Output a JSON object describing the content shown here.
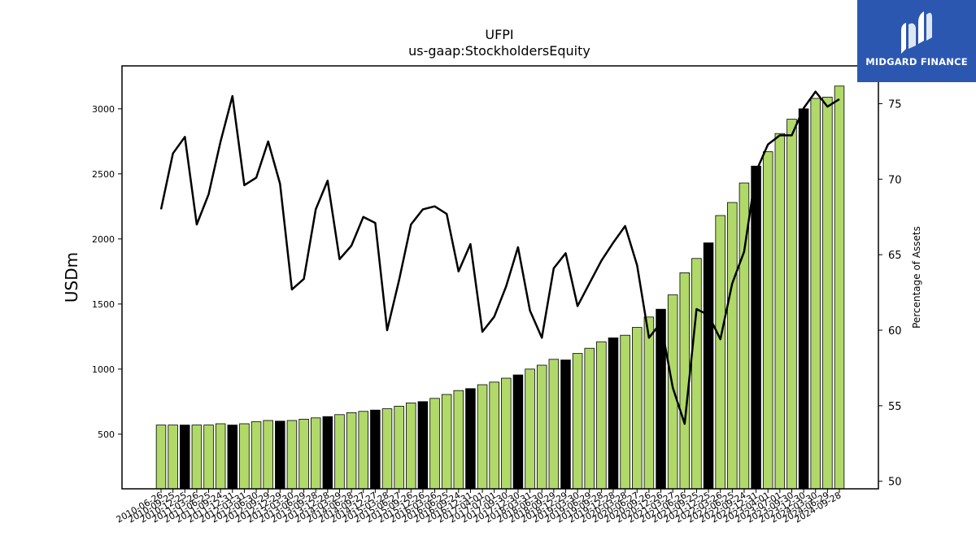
{
  "brand": {
    "name": "MIDGARD FINANCE",
    "bg_color": "#2c57b0"
  },
  "chart_data": {
    "type": "bar",
    "title": "UFPI",
    "subtitle": "us-gaap:StockholdersEquity",
    "ylabel": "USDm",
    "y2label": "Percentage of Assets",
    "ylim": [
      80,
      3330
    ],
    "y2lim": [
      49.5,
      77.5
    ],
    "yticks": [
      500,
      1000,
      1500,
      2000,
      2500,
      3000
    ],
    "y2ticks": [
      50,
      55,
      60,
      65,
      70,
      75
    ],
    "colors": {
      "bar": "#b0d96a",
      "bar_q4": "#000000",
      "line": "#000000"
    },
    "categories": [
      "2010-06-26",
      "2010-09-25",
      "2010-12-25",
      "2011-03-26",
      "2011-06-25",
      "2011-09-24",
      "2011-12-31",
      "2012-03-31",
      "2012-06-30",
      "2012-09-29",
      "2012-12-29",
      "2013-03-30",
      "2013-06-29",
      "2013-09-28",
      "2013-12-28",
      "2014-03-29",
      "2014-06-28",
      "2014-09-27",
      "2014-12-27",
      "2015-03-28",
      "2015-06-27",
      "2015-09-26",
      "2015-12-26",
      "2016-03-26",
      "2016-06-25",
      "2016-09-24",
      "2016-12-31",
      "2017-04-01",
      "2017-07-01",
      "2017-09-30",
      "2017-12-30",
      "2018-03-31",
      "2018-06-30",
      "2018-09-29",
      "2018-12-29",
      "2019-03-30",
      "2019-06-29",
      "2019-09-28",
      "2019-12-28",
      "2020-03-28",
      "2020-06-27",
      "2020-09-26",
      "2020-12-26",
      "2021-03-27",
      "2021-06-26",
      "2021-09-25",
      "2021-12-25",
      "2022-03-26",
      "2022-06-25",
      "2022-09-24",
      "2022-12-31",
      "2023-04-01",
      "2023-07-01",
      "2023-09-30",
      "2023-12-30",
      "2024-03-30",
      "2024-06-29",
      "2024-09-28"
    ],
    "x_tick_labels": [
      "2010-06-26",
      "2010-09-25",
      "2010-12-25",
      "2011-03-26",
      "2011-06-25",
      "2011-09-24",
      "2011-12-31",
      "2012-03-31",
      "2012-06-30",
      "2012-09-29",
      "2012-12-29",
      "2013-03-30",
      "2013-06-29",
      "2013-09-28",
      "2013-12-28",
      "2014-03-29",
      "2014-06-28",
      "2014-09-27",
      "2014-12-27",
      "2015-03-28",
      "2015-06-27",
      "2015-09-26",
      "2015-12-26",
      "2016-03-26",
      "2016-06-25",
      "2016-09-24",
      "2016-12-31",
      "2017-04-01",
      "2017-07-01",
      "2017-09-30",
      "2017-12-30",
      "2018-03-31",
      "2018-06-30",
      "2018-09-29",
      "2018-12-29",
      "2019-03-30",
      "2019-06-29",
      "2019-09-28",
      "2019-12-28",
      "2020-03-28",
      "2020-06-27",
      "2020-09-26",
      "2020-12-26",
      "2021-03-27",
      "2021-06-26",
      "2021-09-25",
      "2021-12-25",
      "2022-03-26",
      "2022-06-25",
      "2022-09-24",
      "2022-12-31",
      "2023-04-01",
      "2023-07-01",
      "2023-09-30",
      "2023-12-30",
      "2024-03-30",
      "2024-06-29",
      "2024-09-28"
    ],
    "series": [
      {
        "type": "bar",
        "values": [
          570,
          570,
          570,
          570,
          570,
          580,
          570,
          580,
          595,
          605,
          600,
          605,
          615,
          625,
          635,
          650,
          665,
          675,
          685,
          695,
          715,
          740,
          750,
          775,
          805,
          835,
          850,
          880,
          900,
          930,
          955,
          1000,
          1030,
          1075,
          1070,
          1120,
          1160,
          1210,
          1240,
          1260,
          1320,
          1400,
          1460,
          1570,
          1740,
          1850,
          1970,
          2180,
          2280,
          2430,
          2560,
          2670,
          2810,
          2920,
          3000,
          3080,
          3090,
          3175
        ],
        "q4_flags": [
          0,
          0,
          1,
          0,
          0,
          0,
          1,
          0,
          0,
          0,
          1,
          0,
          0,
          0,
          1,
          0,
          0,
          0,
          1,
          0,
          0,
          0,
          1,
          0,
          0,
          0,
          1,
          0,
          0,
          0,
          1,
          0,
          0,
          0,
          1,
          0,
          0,
          0,
          1,
          0,
          0,
          0,
          1,
          0,
          0,
          0,
          1,
          0,
          0,
          0,
          1,
          0,
          0,
          0,
          1,
          0,
          0,
          0
        ]
      },
      {
        "type": "line",
        "axis": "right",
        "values": [
          68.0,
          71.7,
          72.8,
          67.0,
          69.0,
          72.5,
          75.5,
          69.6,
          70.1,
          72.5,
          69.7,
          62.7,
          63.4,
          68.0,
          69.9,
          64.7,
          65.6,
          67.5,
          67.1,
          60.0,
          63.3,
          67.0,
          68.0,
          68.2,
          67.7,
          63.9,
          65.7,
          59.9,
          60.9,
          62.9,
          65.5,
          61.3,
          59.5,
          64.1,
          65.1,
          61.6,
          63.1,
          64.6,
          65.8,
          66.9,
          64.3,
          59.5,
          60.5,
          56.2,
          53.8,
          61.4,
          61.0,
          59.4,
          63.1,
          65.2,
          70.5,
          72.3,
          72.9,
          72.9,
          74.7,
          75.8,
          74.8,
          75.3
        ]
      }
    ]
  }
}
